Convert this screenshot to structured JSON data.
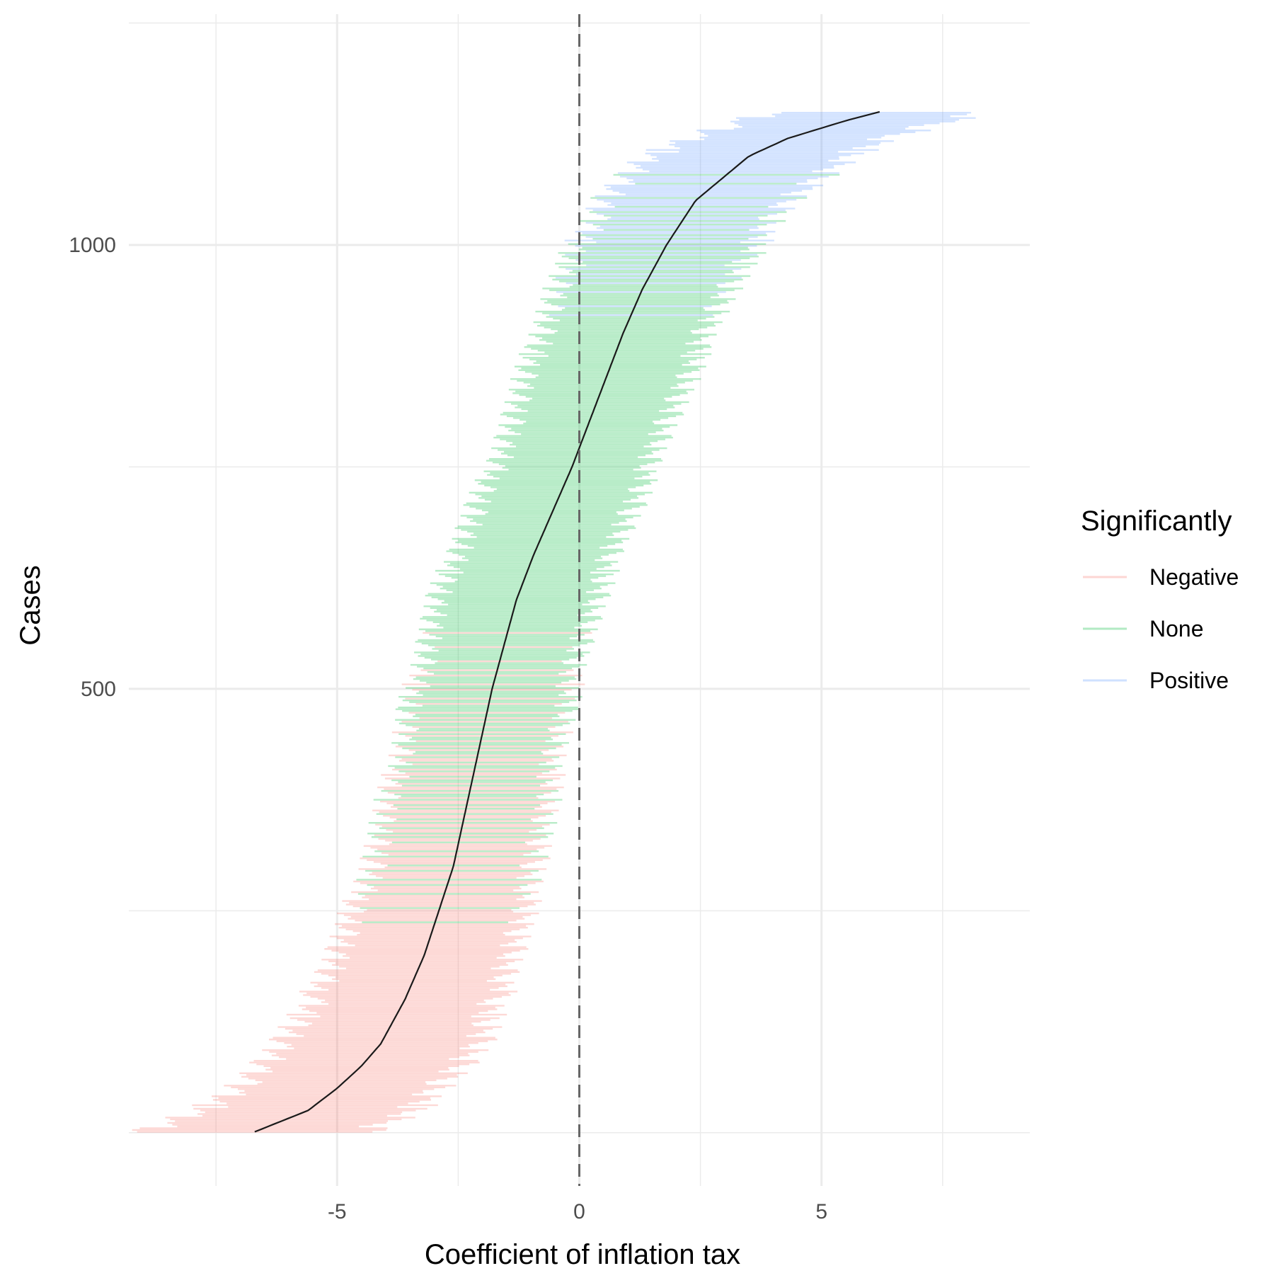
{
  "chart_data": {
    "type": "errorbar-forest",
    "xlabel": "Coefficient of inflation tax",
    "ylabel": "Cases",
    "x_ticks": [
      -5,
      0,
      5
    ],
    "x_tick_labels": [
      "-5",
      "0",
      "5"
    ],
    "y_ticks": [
      500,
      1000
    ],
    "y_tick_labels": [
      "500",
      "1000"
    ],
    "xlim": [
      -9.3,
      9.3
    ],
    "ylim": [
      -60,
      1260
    ],
    "n_cases": 1150,
    "reference_line_x": 0,
    "grid": true,
    "legend": {
      "title": "Significantly",
      "placement": "right",
      "entries": [
        {
          "label": "Negative",
          "color": "#f8766d"
        },
        {
          "label": "None",
          "color": "#00ba38"
        },
        {
          "label": "Positive",
          "color": "#619cff"
        }
      ]
    },
    "estimate_curve": {
      "case": [
        1,
        25,
        50,
        75,
        100,
        150,
        200,
        250,
        300,
        350,
        400,
        450,
        500,
        550,
        600,
        650,
        700,
        750,
        800,
        850,
        900,
        950,
        1000,
        1050,
        1100,
        1120,
        1140,
        1150
      ],
      "estimate": [
        -6.7,
        -5.6,
        -5.0,
        -4.5,
        -4.1,
        -3.6,
        -3.2,
        -2.9,
        -2.6,
        -2.4,
        -2.2,
        -2.0,
        -1.8,
        -1.55,
        -1.3,
        -0.95,
        -0.55,
        -0.15,
        0.2,
        0.55,
        0.9,
        1.3,
        1.8,
        2.4,
        3.5,
        4.3,
        5.5,
        6.2
      ]
    },
    "interval_half_width": {
      "case": [
        1,
        100,
        200,
        300,
        400,
        500,
        600,
        700,
        800,
        900,
        1000,
        1100,
        1150
      ],
      "half_width": [
        2.2,
        2.0,
        1.8,
        1.7,
        1.6,
        1.6,
        1.6,
        1.6,
        1.6,
        1.7,
        1.8,
        2.0,
        2.2
      ]
    },
    "series_case_ranges": [
      {
        "name": "Negative",
        "from": 1,
        "to": 590
      },
      {
        "name": "None",
        "from": 180,
        "to": 1100
      },
      {
        "name": "Positive",
        "from": 900,
        "to": 1150
      }
    ]
  }
}
